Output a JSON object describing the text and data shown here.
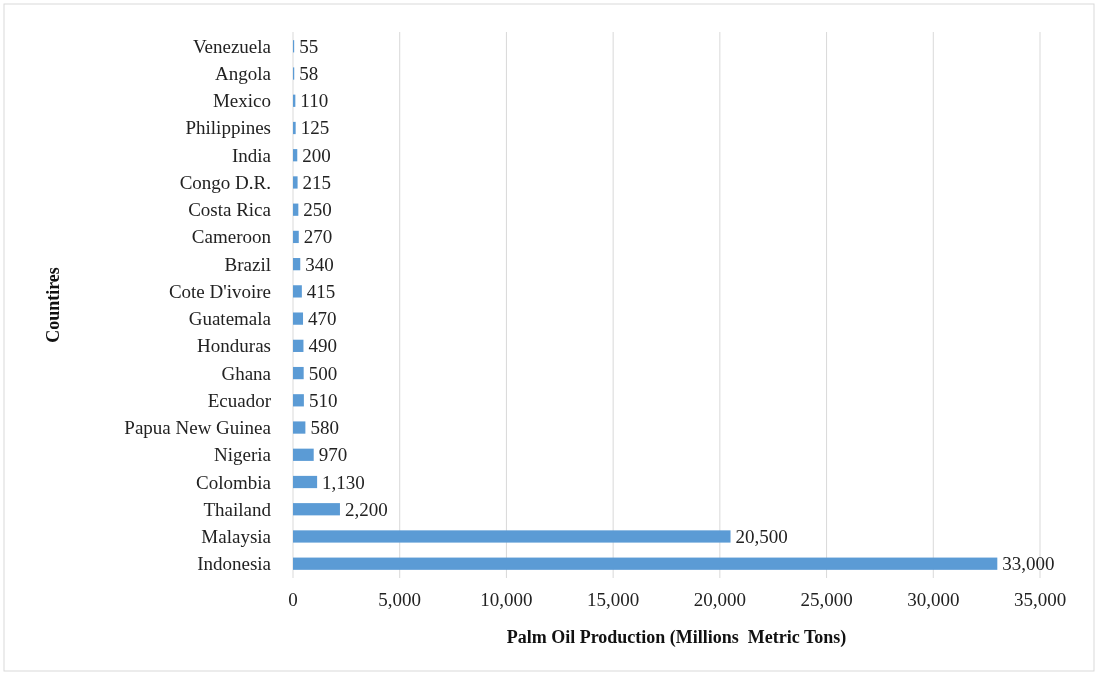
{
  "chart_data": {
    "type": "bar",
    "orientation": "horizontal",
    "xlabel": "Palm Oil Production (Millions  Metric Tons)",
    "ylabel": "Countires",
    "categories": [
      "Venezuela",
      "Angola",
      "Mexico",
      "Philippines",
      "India",
      "Congo D.R.",
      "Costa Rica",
      "Cameroon",
      "Brazil",
      "Cote D'ivoire",
      "Guatemala",
      "Honduras",
      "Ghana",
      "Ecuador",
      "Papua New Guinea",
      "Nigeria",
      "Colombia",
      "Thailand",
      "Malaysia",
      "Indonesia"
    ],
    "values": [
      55,
      58,
      110,
      125,
      200,
      215,
      250,
      270,
      340,
      415,
      470,
      490,
      500,
      510,
      580,
      970,
      1130,
      2200,
      20500,
      33000
    ],
    "color": "#5b9bd5",
    "data_labels": true,
    "value_labels": [
      "55",
      "58",
      "110",
      "125",
      "200",
      "215",
      "250",
      "270",
      "340",
      "415",
      "470",
      "490",
      "500",
      "510",
      "580",
      "970",
      "1,130",
      "2,200",
      "20,500",
      "33,000"
    ],
    "xlim": [
      0,
      35000
    ],
    "xticks": [
      {
        "value": 0,
        "label": "0"
      },
      {
        "value": 5000,
        "label": "5,000"
      },
      {
        "value": 10000,
        "label": "10,000"
      },
      {
        "value": 15000,
        "label": "15,000"
      },
      {
        "value": 20000,
        "label": "20,000"
      },
      {
        "value": 25000,
        "label": "25,000"
      },
      {
        "value": 30000,
        "label": "30,000"
      },
      {
        "value": 35000,
        "label": "35,000"
      }
    ],
    "grid": "x"
  }
}
